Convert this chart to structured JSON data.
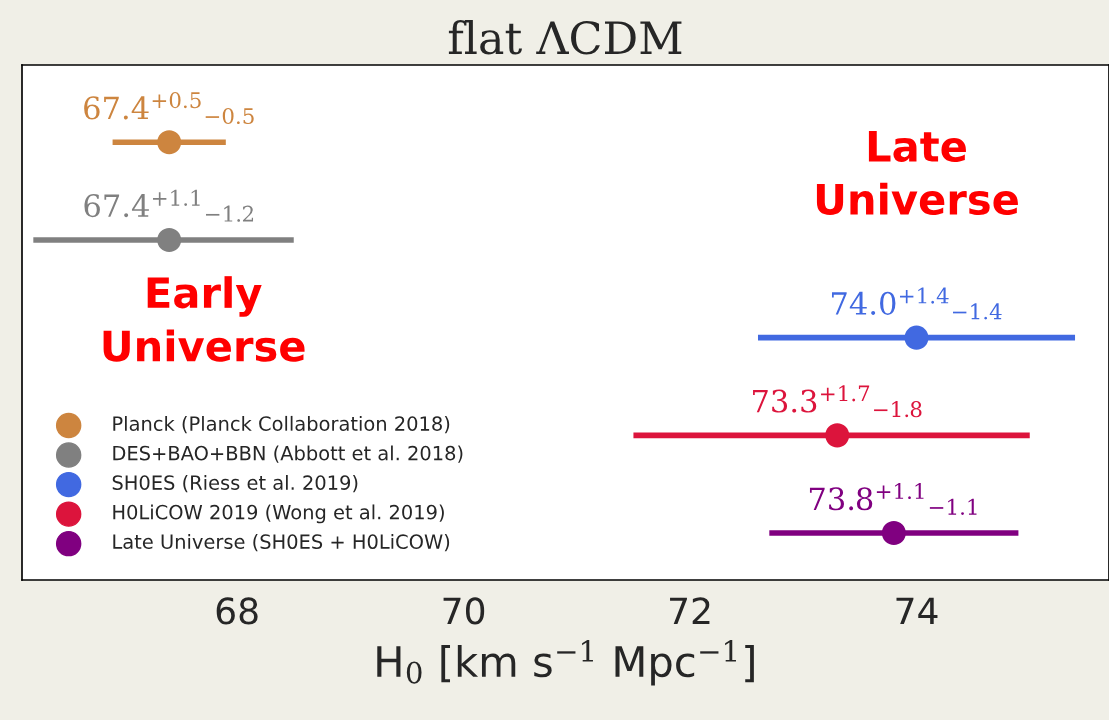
{
  "chart_data": {
    "type": "scatter",
    "orientation": "horizontal",
    "title": "flat ΛCDM",
    "xlabel": "H$_{0}$ [km s$^{−1}$ Mpc$^{−1}$]",
    "categories": [
      null,
      null,
      null,
      null,
      null
    ],
    "xlim": [
      66.1,
      75.7
    ],
    "xticks": [
      68,
      70,
      72,
      74
    ],
    "tick_labels": "x",
    "grid": false,
    "legend": "bottom left",
    "marker": "circle",
    "series": [
      {
        "name": "Planck (Planck Collaboration 2018)",
        "color": "#cd853f",
        "values": [
          67.4,
          null,
          null,
          null,
          null
        ],
        "errors": [
          [
            66.9,
            67.9
          ],
          null,
          null,
          null,
          null
        ],
        "value_labels": [
          "67.4$^{+0.5}$$_{−0.5}$",
          null,
          null,
          null,
          null
        ]
      },
      {
        "name": "DES+BAO+BBN (Abbott et al. 2018)",
        "color": "#808080",
        "values": [
          null,
          67.4,
          null,
          null,
          null
        ],
        "errors": [
          null,
          [
            66.2,
            68.5
          ],
          null,
          null,
          null
        ],
        "value_labels": [
          null,
          "67.4$^{+1.1}$$_{−1.2}$",
          null,
          null,
          null
        ]
      },
      {
        "name": "SH0ES (Riess et al. 2019)",
        "color": "#4169e1",
        "values": [
          null,
          null,
          74.0,
          null,
          null
        ],
        "errors": [
          null,
          null,
          [
            72.6,
            75.4
          ],
          null,
          null
        ],
        "value_labels": [
          null,
          null,
          "74.0$^{+1.4}$$_{−1.4}$",
          null,
          null
        ]
      },
      {
        "name": "H0LiCOW 2019 (Wong et al. 2019)",
        "color": "#dc143c",
        "values": [
          null,
          null,
          null,
          73.3,
          null
        ],
        "errors": [
          null,
          null,
          null,
          [
            71.5,
            75.0
          ],
          null
        ],
        "value_labels": [
          null,
          null,
          null,
          "73.3$^{+1.7}$$_{−1.8}$",
          null
        ]
      },
      {
        "name": "Late Universe (SH0ES + H0LiCOW)",
        "color": "#800080",
        "values": [
          null,
          null,
          null,
          null,
          73.8
        ],
        "errors": [
          null,
          null,
          null,
          null,
          [
            72.7,
            74.9
          ]
        ],
        "value_labels": [
          null,
          null,
          null,
          null,
          "73.8$^{+1.1}$$_{−1.1}$"
        ]
      }
    ],
    "annotations": [
      "Early\nUniverse",
      "Late\nUniverse"
    ]
  }
}
